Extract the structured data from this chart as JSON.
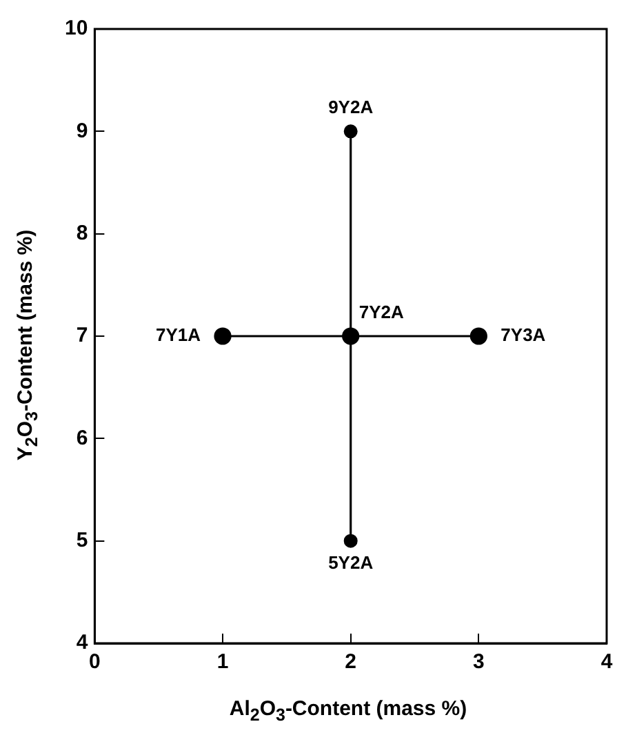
{
  "chart_data": {
    "type": "line",
    "xlabel": "Al$_{2}$O$_{3}$-Content (mass %)",
    "ylabel": "Y$_{2}$O$_{3}$-Content (mass %)",
    "series": [
      {
        "color": "#000000",
        "x": [
          1,
          2,
          3
        ],
        "values": [
          7,
          7,
          7
        ]
      },
      {
        "color": "#000000",
        "x": [
          2,
          2,
          2
        ],
        "values": [
          5,
          7,
          9
        ]
      }
    ],
    "xlim": [
      0,
      4
    ],
    "xticks": [
      0,
      1,
      2,
      3,
      4
    ],
    "ylim": [
      4,
      10
    ],
    "yticks": [
      4,
      5,
      6,
      7,
      8,
      9,
      10
    ],
    "grid": false,
    "legend": false,
    "marker": "circle",
    "line_style": "solid",
    "annotations": [
      {
        "text": "9Y2A",
        "x": 2,
        "y": 9
      },
      {
        "text": "7Y1A",
        "x": 1,
        "y": 7
      },
      {
        "text": "7Y2A",
        "x": 2,
        "y": 7
      },
      {
        "text": "7Y3A",
        "x": 3,
        "y": 7
      },
      {
        "text": "5Y2A",
        "x": 2,
        "y": 5
      }
    ]
  }
}
